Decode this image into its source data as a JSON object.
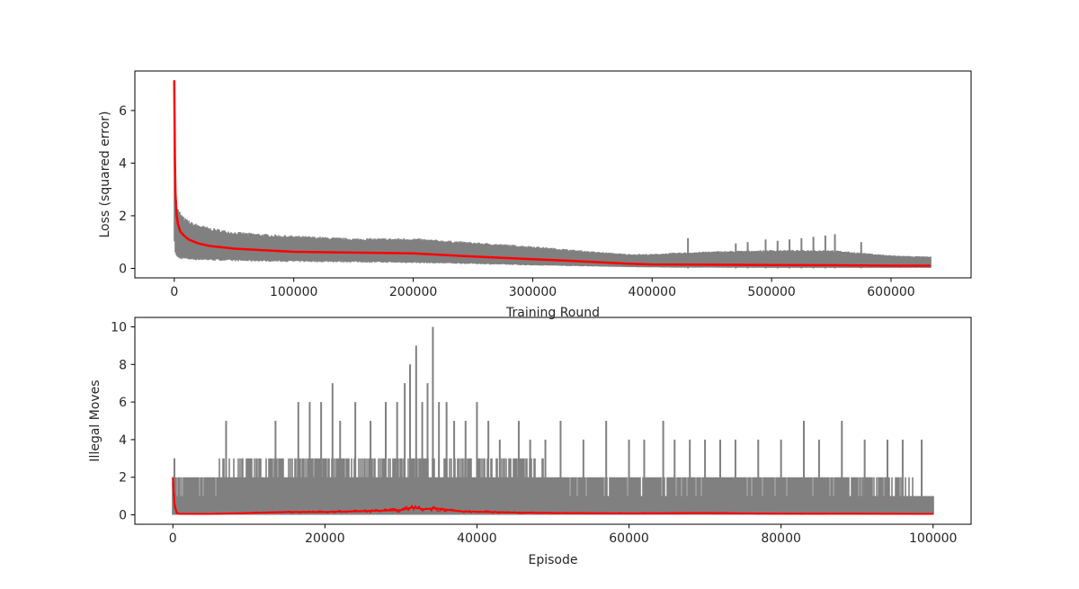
{
  "chart_data": [
    {
      "type": "line",
      "title": "",
      "xlabel": "Training Round",
      "ylabel": "Loss (squared error)",
      "xlim": [
        -33000,
        667000
      ],
      "ylim": [
        -0.36,
        7.5
      ],
      "xticks": [
        0,
        100000,
        200000,
        300000,
        400000,
        500000,
        600000
      ],
      "yticks": [
        0,
        2,
        4,
        6
      ],
      "grid": false,
      "series": [
        {
          "role": "raw",
          "color": "#808080",
          "band_x": [
            0,
            1000,
            2000,
            4000,
            8000,
            15000,
            30000,
            50000,
            80000,
            100000,
            150000,
            200000,
            250000,
            300000,
            350000,
            380000,
            400000,
            420000,
            450000,
            500000,
            550000,
            600000,
            633000
          ],
          "band_upper": [
            7.0,
            3.0,
            2.4,
            2.2,
            1.95,
            1.75,
            1.55,
            1.4,
            1.3,
            1.25,
            1.15,
            1.15,
            1.0,
            0.85,
            0.65,
            0.55,
            0.55,
            0.6,
            0.65,
            0.7,
            0.7,
            0.5,
            0.45
          ],
          "band_lower": [
            1.0,
            0.6,
            0.45,
            0.4,
            0.38,
            0.35,
            0.33,
            0.3,
            0.28,
            0.27,
            0.25,
            0.22,
            0.18,
            0.12,
            0.08,
            0.05,
            0.04,
            0.03,
            0.03,
            0.02,
            0.02,
            0.02,
            0.02
          ],
          "spikes": [
            [
              430000,
              1.15
            ],
            [
              470000,
              0.95
            ],
            [
              480000,
              1.0
            ],
            [
              495000,
              1.1
            ],
            [
              505000,
              1.05
            ],
            [
              515000,
              1.1
            ],
            [
              525000,
              1.15
            ],
            [
              535000,
              1.2
            ],
            [
              545000,
              1.25
            ],
            [
              553000,
              1.3
            ],
            [
              575000,
              1.0
            ]
          ]
        },
        {
          "role": "moving-average",
          "color": "#ff0000",
          "x": [
            0,
            500,
            1000,
            2000,
            3000,
            5000,
            8000,
            12000,
            20000,
            30000,
            50000,
            80000,
            100000,
            150000,
            200000,
            250000,
            300000,
            350000,
            380000,
            400000,
            450000,
            500000,
            550000,
            600000,
            633000
          ],
          "y": [
            7.15,
            4.2,
            2.8,
            2.0,
            1.7,
            1.4,
            1.25,
            1.1,
            0.95,
            0.85,
            0.75,
            0.68,
            0.63,
            0.6,
            0.57,
            0.45,
            0.35,
            0.25,
            0.18,
            0.15,
            0.14,
            0.13,
            0.12,
            0.1,
            0.1
          ]
        }
      ]
    },
    {
      "type": "line",
      "title": "",
      "xlabel": "Episode",
      "ylabel": "Illegal Moves",
      "xlim": [
        -5000,
        105000
      ],
      "ylim": [
        -0.5,
        10.5
      ],
      "xticks": [
        0,
        20000,
        40000,
        60000,
        80000,
        100000
      ],
      "yticks": [
        0,
        2,
        4,
        6,
        8,
        10
      ],
      "grid": false,
      "series": [
        {
          "role": "raw",
          "color": "#808080",
          "band_x": [
            0,
            500,
            2000,
            5000,
            10000,
            15000,
            20000,
            25000,
            30000,
            35000,
            40000,
            45000,
            50000,
            55000,
            60000,
            70000,
            80000,
            90000,
            100000
          ],
          "band_upper": [
            3,
            2,
            2,
            2,
            3,
            3,
            3,
            3,
            3,
            3,
            3,
            3,
            2,
            2,
            2,
            2,
            2,
            2,
            1
          ],
          "spikes": [
            [
              200,
              3
            ],
            [
              7000,
              5
            ],
            [
              13500,
              5
            ],
            [
              16500,
              6
            ],
            [
              18000,
              6
            ],
            [
              19500,
              6
            ],
            [
              21000,
              7
            ],
            [
              22000,
              5
            ],
            [
              24000,
              6
            ],
            [
              26000,
              5
            ],
            [
              28000,
              6
            ],
            [
              29500,
              6
            ],
            [
              30500,
              7
            ],
            [
              31200,
              8
            ],
            [
              32000,
              9
            ],
            [
              32800,
              6
            ],
            [
              33500,
              7
            ],
            [
              34200,
              10
            ],
            [
              35000,
              6
            ],
            [
              36000,
              6
            ],
            [
              37000,
              5
            ],
            [
              38500,
              5
            ],
            [
              40000,
              6
            ],
            [
              41500,
              5
            ],
            [
              43000,
              4
            ],
            [
              45500,
              5
            ],
            [
              47000,
              4
            ],
            [
              49000,
              4
            ],
            [
              51000,
              5
            ],
            [
              54000,
              4
            ],
            [
              57000,
              5
            ],
            [
              60000,
              4
            ],
            [
              62000,
              4
            ],
            [
              64500,
              5
            ],
            [
              66000,
              4
            ],
            [
              68000,
              4
            ],
            [
              70000,
              4
            ],
            [
              72000,
              4
            ],
            [
              74000,
              4
            ],
            [
              77000,
              4
            ],
            [
              80000,
              4
            ],
            [
              83000,
              5
            ],
            [
              85000,
              4
            ],
            [
              88000,
              5
            ],
            [
              91000,
              4
            ],
            [
              94000,
              4
            ],
            [
              96000,
              4
            ],
            [
              98500,
              4
            ]
          ]
        },
        {
          "role": "moving-average",
          "color": "#ff0000",
          "x": [
            0,
            200,
            500,
            1000,
            5000,
            10000,
            15000,
            20000,
            25000,
            30000,
            31500,
            33000,
            34500,
            38000,
            45000,
            50000,
            60000,
            70000,
            80000,
            90000,
            100000
          ],
          "y": [
            2.0,
            0.6,
            0.1,
            0.05,
            0.05,
            0.1,
            0.15,
            0.15,
            0.2,
            0.25,
            0.4,
            0.3,
            0.35,
            0.18,
            0.12,
            0.1,
            0.08,
            0.1,
            0.06,
            0.06,
            0.05
          ]
        }
      ]
    }
  ]
}
